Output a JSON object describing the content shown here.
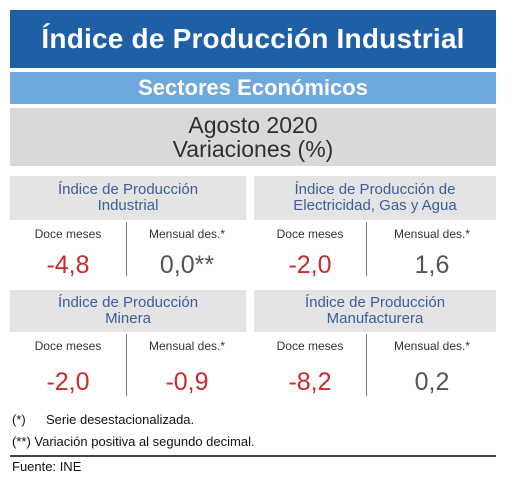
{
  "header": {
    "title": "Índice de Producción Industrial",
    "subtitle": "Sectores Económicos",
    "period_line1": "Agosto 2020",
    "period_line2": "Variaciones (%)"
  },
  "column_labels": {
    "twelve_months": "Doce meses",
    "monthly": "Mensual des.*"
  },
  "indices": [
    {
      "name_line1": "Índice de Producción",
      "name_line2": "Industrial",
      "doce_meses": "-4,8",
      "mensual": "0,0**"
    },
    {
      "name_line1": "Índice de Producción de",
      "name_line2": "Electricidad, Gas y Agua",
      "doce_meses": "-2,0",
      "mensual": "1,6"
    },
    {
      "name_line1": "Índice de Producción",
      "name_line2": "Minera",
      "doce_meses": "-2,0",
      "mensual": "-0,9"
    },
    {
      "name_line1": "Índice de Producción",
      "name_line2": "Manufacturera",
      "doce_meses": "-8,2",
      "mensual": "0,2"
    }
  ],
  "notes": [
    {
      "mark": "(*)",
      "text": "Serie desestacionalizada."
    },
    {
      "mark": "(**)",
      "text": "Variación positiva al segundo decimal."
    }
  ],
  "source": "Fuente: INE",
  "colors": {
    "title_bg": "#1f5fa6",
    "subtitle_bg": "#6fa8dc",
    "panel_bg": "#d9d9d9",
    "card_header_text": "#3a5f9c",
    "negative_value": "#cc2a2a",
    "positive_value": "#555555"
  }
}
